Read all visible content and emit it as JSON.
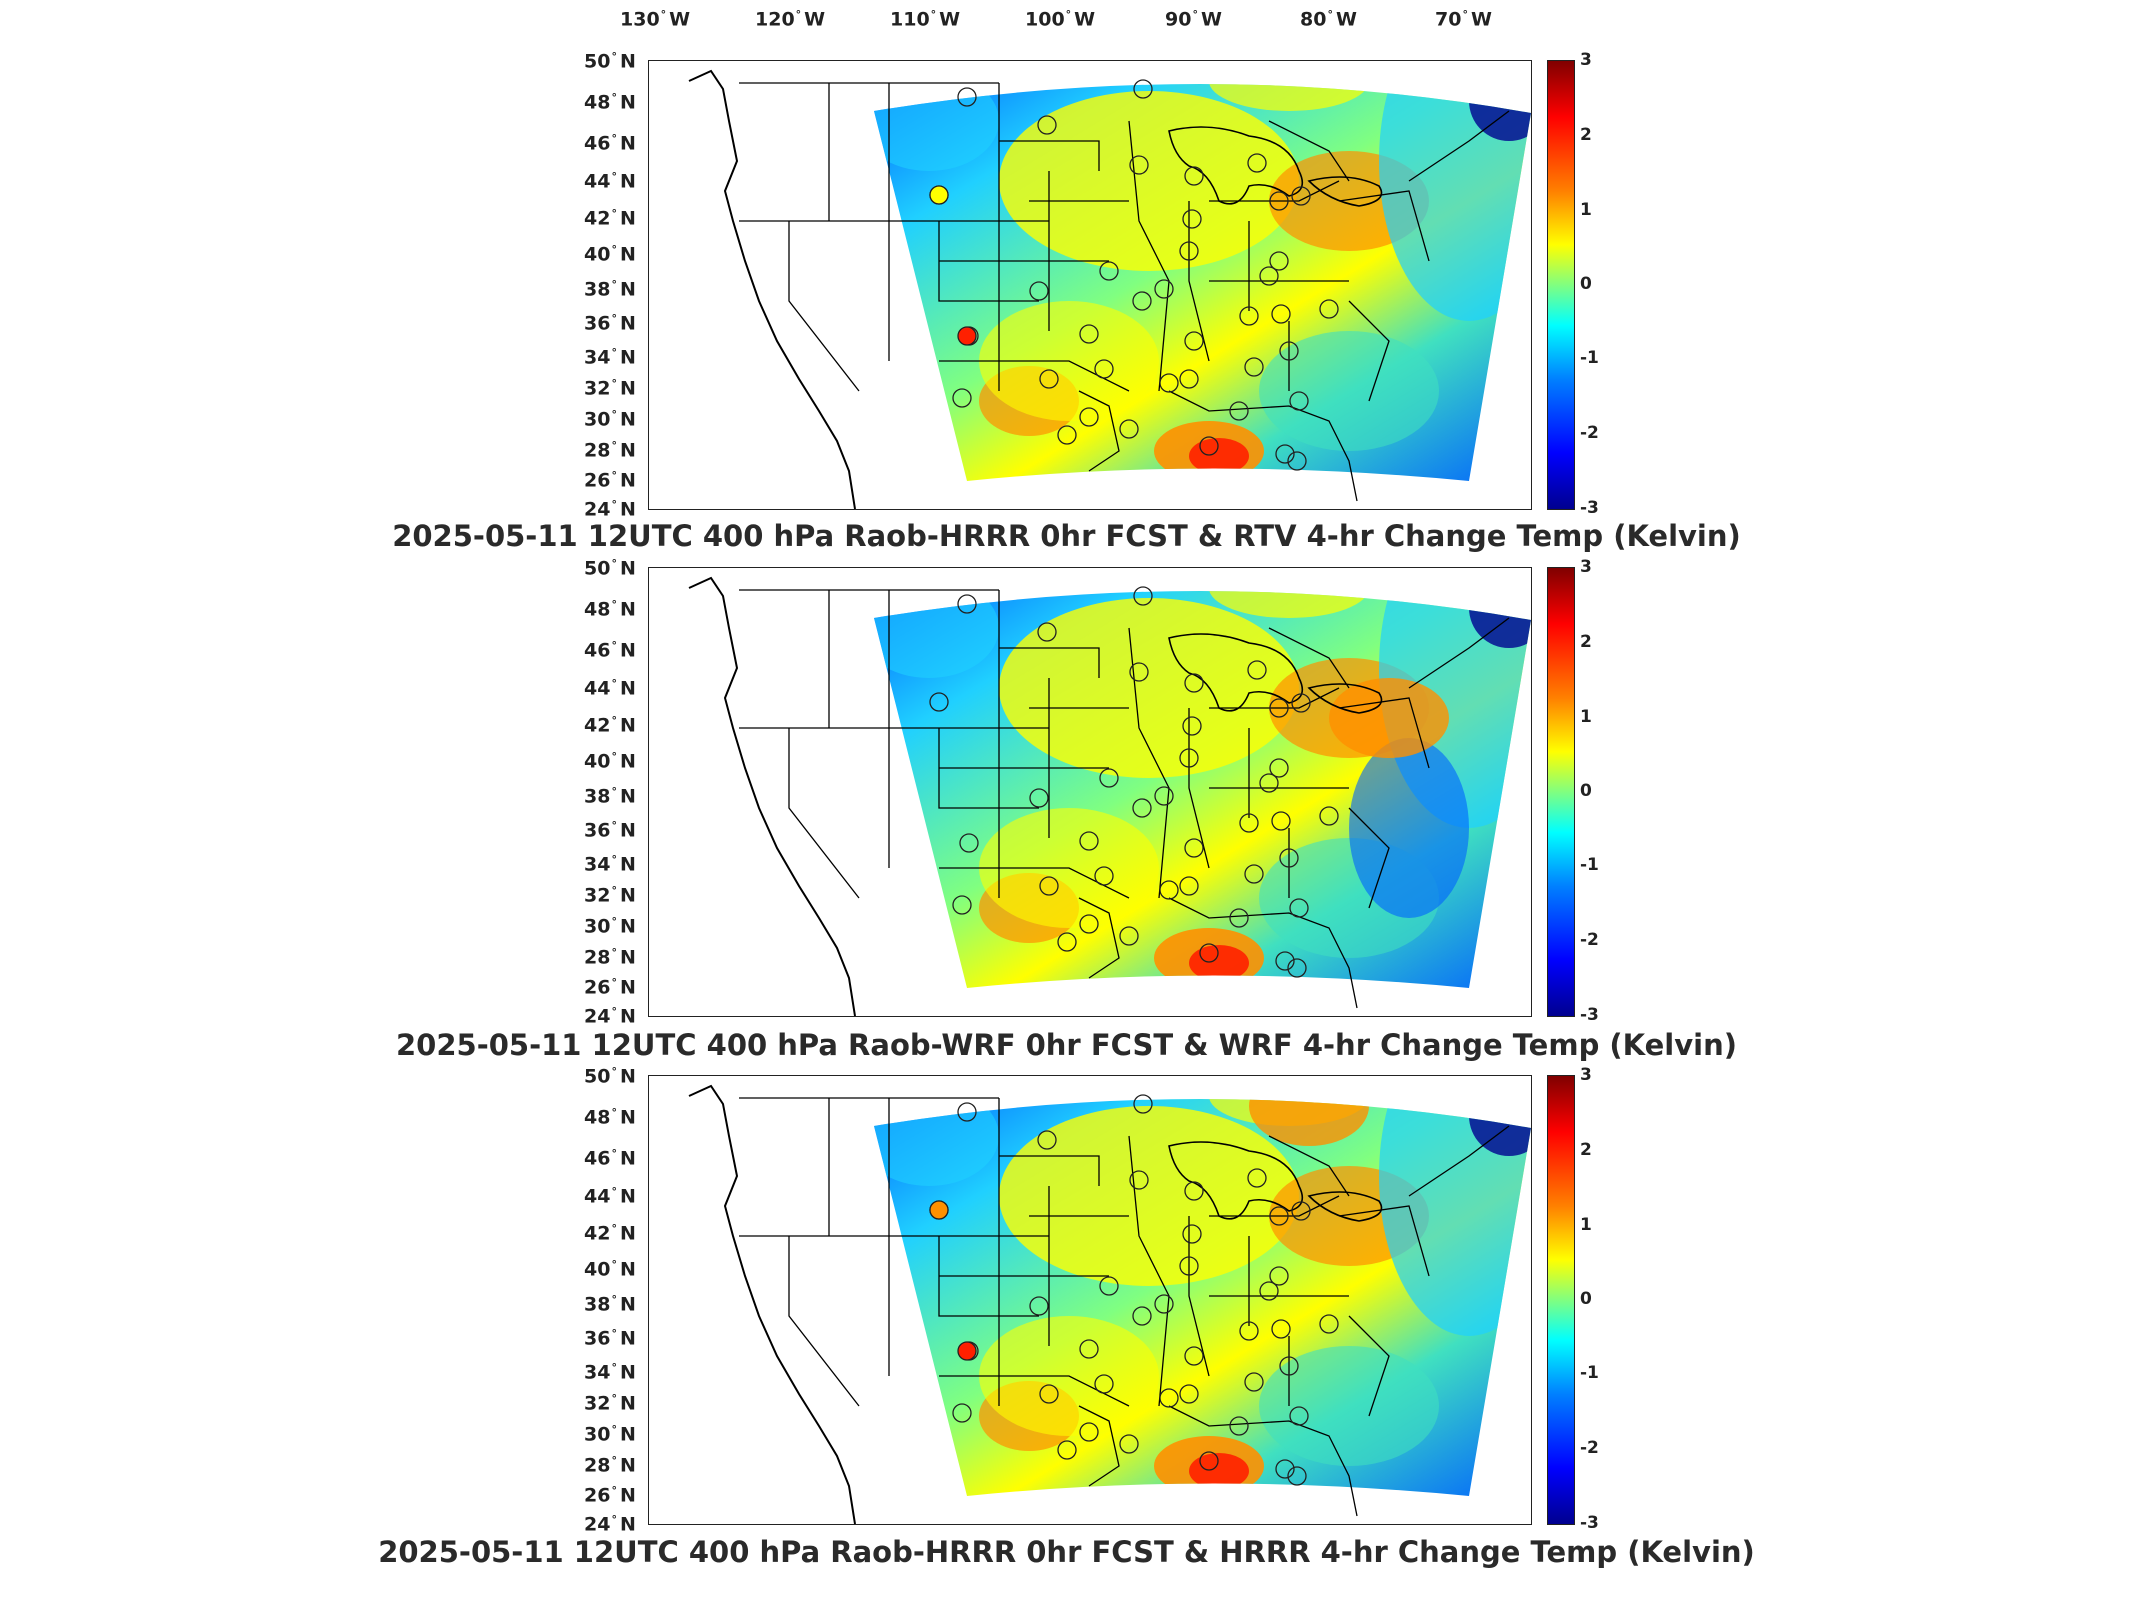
{
  "longitude_labels": [
    "130",
    "120",
    "110",
    "100",
    "90",
    "80",
    "70"
  ],
  "longitude_suffix": "W",
  "latitude_labels": [
    "50",
    "48",
    "46",
    "44",
    "42",
    "40",
    "38",
    "36",
    "34",
    "32",
    "30",
    "28",
    "26",
    "24"
  ],
  "latitude_suffix": "N",
  "degree_symbol": "°",
  "colorbar_ticks": [
    "3",
    "2",
    "1",
    "0",
    "-1",
    "-2",
    "-3"
  ],
  "colorbar": {
    "min": -3,
    "max": 3,
    "colormap": "jet"
  },
  "panels": [
    {
      "title": "2025-05-11 12UTC 400 hPa Raob-HRRR 0hr FCST & RTV 4-hr Change Temp (Kelvin)",
      "station_markers_highlight": [
        {
          "value": 1.3,
          "location": "Idaho"
        },
        {
          "value": 2.0,
          "location": "New Mexico"
        }
      ]
    },
    {
      "title": "2025-05-11 12UTC 400 hPa Raob-WRF 0hr FCST & WRF 4-hr Change Temp (Kelvin)",
      "station_markers_highlight": []
    },
    {
      "title": "2025-05-11 12UTC 400 hPa Raob-HRRR 0hr FCST & HRRR 4-hr Change Temp (Kelvin)",
      "station_markers_highlight": [
        {
          "value": 1.5,
          "location": "Idaho"
        },
        {
          "value": 2.0,
          "location": "New Mexico"
        }
      ]
    }
  ],
  "colors": {
    "deep_blue": "#00008f",
    "blue": "#0060ff",
    "cyan": "#20d0ff",
    "teal": "#40e0c0",
    "green": "#80ff80",
    "yellow": "#ffff00",
    "orange": "#ff9000",
    "red": "#ff2000",
    "dark_red": "#800000"
  }
}
